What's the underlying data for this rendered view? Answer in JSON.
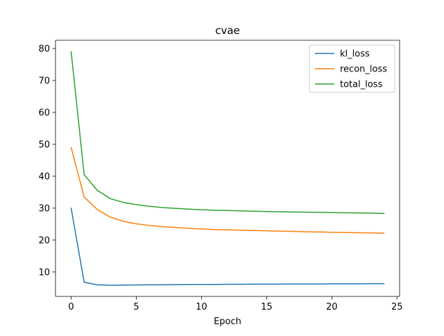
{
  "chart_data": {
    "type": "line",
    "title": "cvae",
    "xlabel": "Epoch",
    "ylabel": "",
    "xlim": [
      -1.2,
      25.2
    ],
    "ylim": [
      2.35,
      82.6
    ],
    "xticks": [
      0,
      5,
      10,
      15,
      20,
      25
    ],
    "yticks": [
      10,
      20,
      30,
      40,
      50,
      60,
      70,
      80
    ],
    "grid": false,
    "legend_position": "top-right",
    "x": [
      0,
      1,
      2,
      3,
      4,
      5,
      6,
      7,
      8,
      9,
      10,
      11,
      12,
      13,
      14,
      15,
      16,
      17,
      18,
      19,
      20,
      21,
      22,
      23,
      24
    ],
    "series": [
      {
        "name": "kl_loss",
        "color": "#1f77b4",
        "values": [
          30.0,
          6.8,
          6.0,
          5.85,
          5.9,
          5.95,
          6.0,
          6.0,
          6.05,
          6.1,
          6.1,
          6.1,
          6.15,
          6.15,
          6.2,
          6.2,
          6.2,
          6.25,
          6.25,
          6.25,
          6.3,
          6.3,
          6.3,
          6.35,
          6.35
        ]
      },
      {
        "name": "recon_loss",
        "color": "#ff7f0e",
        "values": [
          49.0,
          33.5,
          29.6,
          27.2,
          25.9,
          25.1,
          24.6,
          24.2,
          23.95,
          23.7,
          23.5,
          23.3,
          23.2,
          23.1,
          23.0,
          22.9,
          22.8,
          22.7,
          22.6,
          22.55,
          22.45,
          22.4,
          22.3,
          22.25,
          22.15
        ]
      },
      {
        "name": "total_loss",
        "color": "#2ca02c",
        "values": [
          79.0,
          40.5,
          35.6,
          33.0,
          31.8,
          31.1,
          30.6,
          30.2,
          29.95,
          29.7,
          29.5,
          29.35,
          29.25,
          29.15,
          29.05,
          28.95,
          28.85,
          28.8,
          28.75,
          28.7,
          28.6,
          28.55,
          28.5,
          28.45,
          28.35
        ]
      }
    ]
  }
}
